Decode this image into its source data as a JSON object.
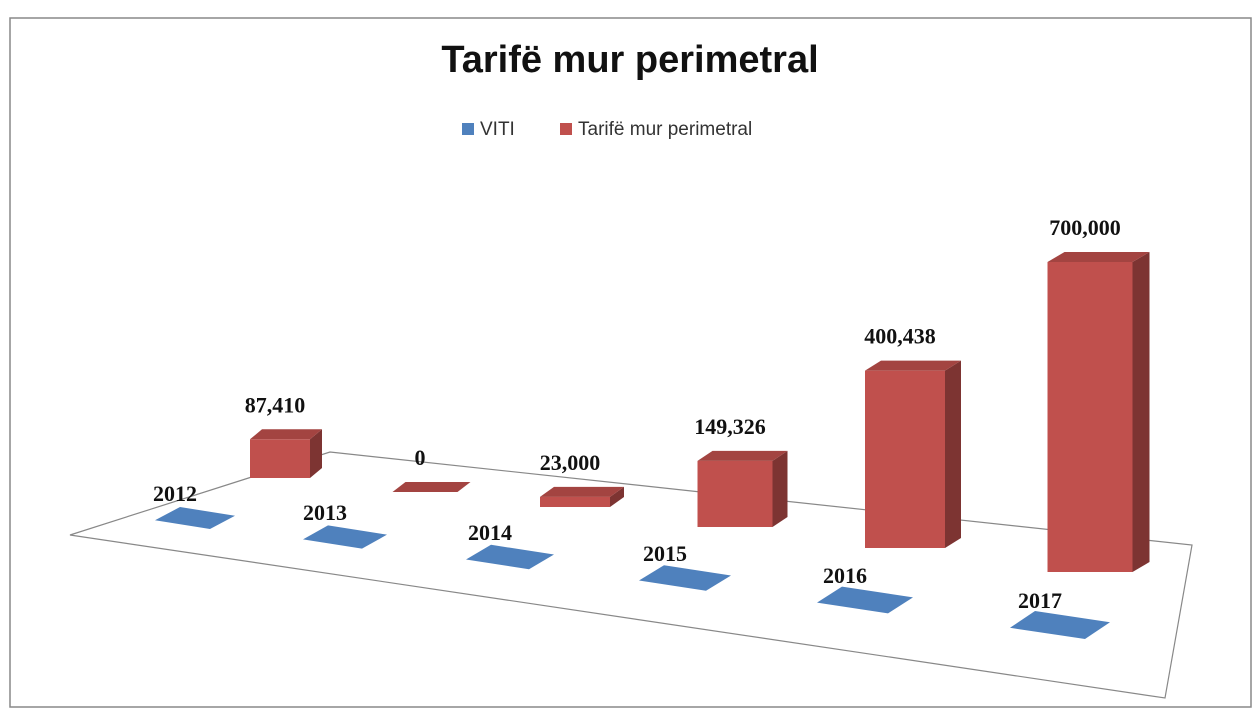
{
  "chart_data": {
    "type": "bar3d",
    "title": "Tarifë mur perimetral",
    "series": [
      {
        "name": "VITI",
        "color": "#4f81bd",
        "values": [
          2012,
          2013,
          2014,
          2015,
          2016,
          2017
        ]
      },
      {
        "name": "Tarifë mur perimetral",
        "color": "#c0504d",
        "values": [
          87410,
          0,
          23000,
          149326,
          400438,
          700000
        ],
        "value_labels": [
          "87,410",
          "0",
          "23,000",
          "149,326",
          "400,438",
          "700,000"
        ]
      }
    ],
    "legend": "top"
  }
}
